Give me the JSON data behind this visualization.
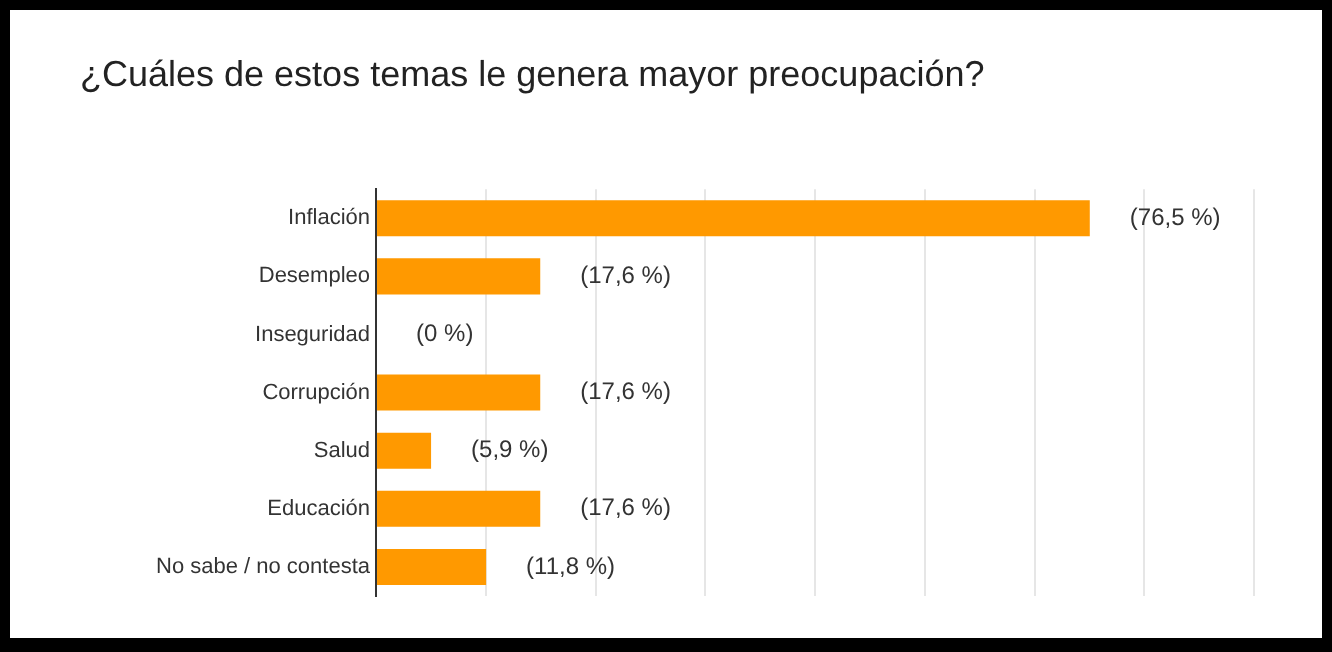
{
  "chart_data": {
    "type": "bar",
    "orientation": "horizontal",
    "title": "¿Cuáles de estos temas le genera mayor preocupación?",
    "categories": [
      "Inflación",
      "Desempleo",
      "Inseguridad",
      "Corrupción",
      "Salud",
      "Educación",
      "No sabe / no contesta"
    ],
    "values": [
      76.5,
      17.6,
      0,
      17.6,
      5.9,
      17.6,
      11.8
    ],
    "value_labels": [
      "(76,5 %)",
      "(17,6 %)",
      "(0 %)",
      "(17,6 %)",
      "(5,9 %)",
      "(17,6 %)",
      "(11,8 %)"
    ],
    "color": "#ff9900",
    "xlim": [
      0,
      94.1
    ],
    "xticks": [
      {
        "value": 0,
        "label": null
      },
      {
        "value": 11.76,
        "label": null
      },
      {
        "value": 23.53,
        "label": null
      },
      {
        "value": 35.29,
        "label": null
      },
      {
        "value": 47.06,
        "label": null
      },
      {
        "value": 58.82,
        "label": null
      },
      {
        "value": 70.59,
        "label": null
      },
      {
        "value": 82.35,
        "label": null
      },
      {
        "value": 94.1,
        "label": null
      }
    ],
    "grid": "x",
    "tick_labels": "y",
    "legend": false
  }
}
